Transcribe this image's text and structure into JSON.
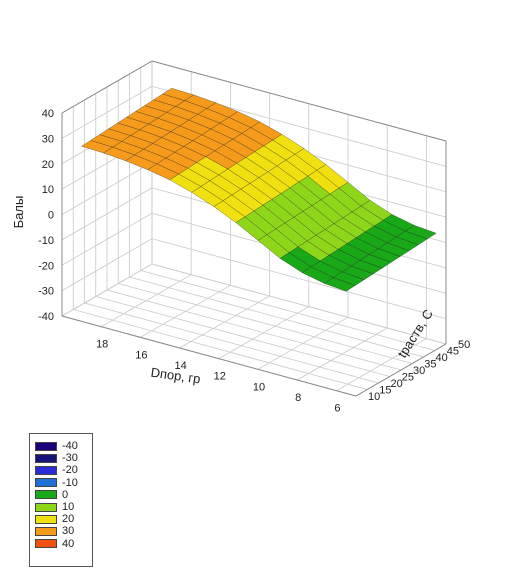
{
  "chart_data": {
    "type": "surface",
    "title": "",
    "zlabel": "Балы",
    "xlabel": "Dпор, гр",
    "ylabel": "tраств, C",
    "x_ticks": [
      "18",
      "16",
      "14",
      "12",
      "10",
      "8",
      "6"
    ],
    "y_ticks": [
      "10",
      "15",
      "20",
      "25",
      "30",
      "35",
      "40",
      "45",
      "50"
    ],
    "z_ticks": [
      "40",
      "30",
      "20",
      "10",
      "0",
      "-10",
      "-20",
      "-30",
      "-40"
    ],
    "xlim": [
      5,
      20
    ],
    "ylim": [
      10,
      50
    ],
    "zlim": [
      -40,
      40
    ],
    "surface_front_edge": {
      "D": [
        19,
        17.5,
        16,
        14.5,
        13,
        11.5,
        10,
        8.5,
        7,
        5.5
      ],
      "score": [
        29,
        28.6,
        27.4,
        25.2,
        21.8,
        17.0,
        10.8,
        4.5,
        1.2,
        0.2
      ]
    },
    "legend": {
      "position": "bottom-left",
      "items": [
        {
          "label": "-40",
          "color": "#1a007a"
        },
        {
          "label": "-30",
          "color": "#15157a"
        },
        {
          "label": "-20",
          "color": "#2b2bd6"
        },
        {
          "label": "-10",
          "color": "#1f6fd6"
        },
        {
          "label": "0",
          "color": "#18a818"
        },
        {
          "label": "10",
          "color": "#8ed61a"
        },
        {
          "label": "20",
          "color": "#f0e010"
        },
        {
          "label": "30",
          "color": "#f59a1a"
        },
        {
          "label": "40",
          "color": "#f05010"
        }
      ]
    }
  }
}
